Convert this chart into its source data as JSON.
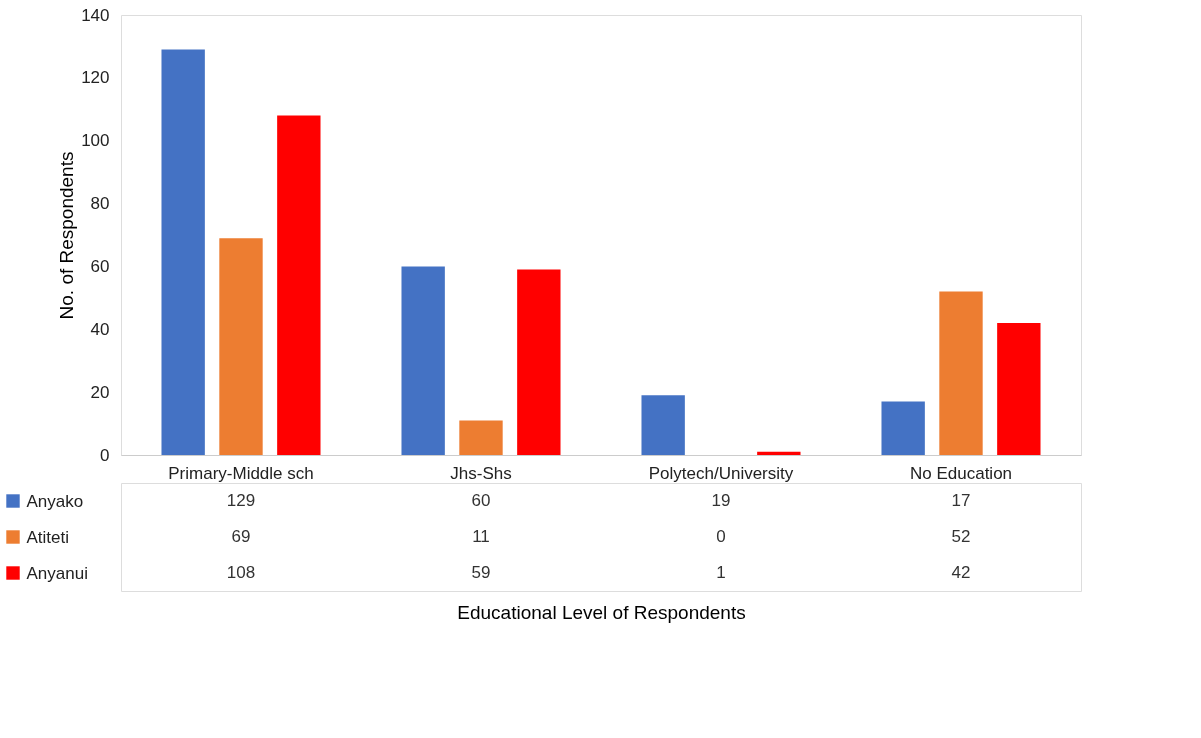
{
  "chart_data": {
    "type": "bar",
    "annotations": [
      "Educational Level of Respondents"
    ],
    "ylabel": "No. of Respondents",
    "categories": [
      "Primary-Middle sch",
      "Jhs-Shs",
      "Polytech/University",
      "No Education"
    ],
    "series": [
      {
        "name": "Anyako",
        "color": "#4472c4",
        "values": [
          129,
          60,
          19,
          17
        ]
      },
      {
        "name": "Atiteti",
        "color": "#ed7d31",
        "values": [
          69,
          11,
          0,
          52
        ]
      },
      {
        "name": "Anyanui",
        "color": "#ff0000",
        "values": [
          108,
          59,
          1,
          42
        ]
      }
    ],
    "ylim": [
      0,
      140
    ],
    "yticks": [
      0,
      20,
      40,
      60,
      80,
      100,
      120,
      140
    ],
    "grid": false,
    "data_labels": true,
    "legend": "bottom left"
  }
}
